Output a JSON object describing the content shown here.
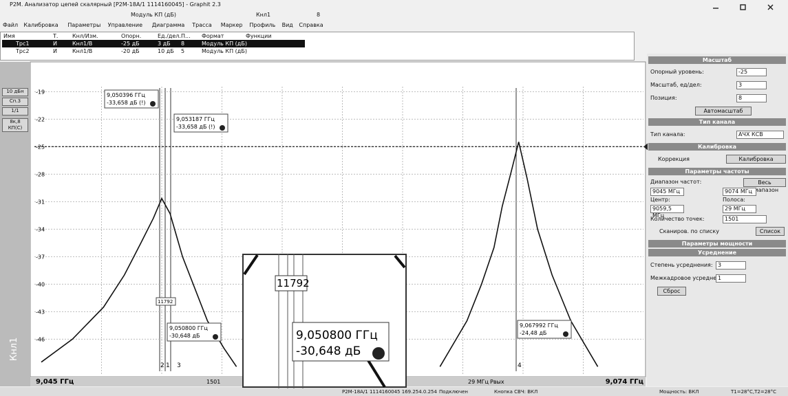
{
  "window": {
    "title": "P2M. Анализатор цепей скалярный [P2M-18A/1 1114160045] - Graphit 2.3"
  },
  "toolbar": {
    "format": "Модуль КП (дБ)",
    "channel": "Кнл1",
    "trace_count": 8
  },
  "menu": [
    "Файл",
    "Калибровка",
    "Параметры",
    "Управление",
    "Диаграмма",
    "Трасса",
    "Маркер",
    "Профиль",
    "Вид",
    "Справка"
  ],
  "trace_table": {
    "columns": [
      "Имя",
      "Т.",
      "Кнл/Изм.",
      "Опорн.",
      "Ед./дел.",
      "П...",
      "Формат",
      "Функции"
    ],
    "rows": [
      [
        "И",
        "Кнл1/В",
        "-25 дБ",
        "3 дБ",
        8,
        "Модуль КП (дБ)"
      ],
      [
        "И",
        "Кнл1/В",
        "-20 дБ",
        "10 дБ",
        5,
        "Модуль КП (дБ)"
      ]
    ]
  },
  "side_buttons": [
    "10 дБн",
    "Сп.3",
    "1/1",
    "8к,8 КП(С)"
  ],
  "channel_label": "Кнл1",
  "chart_data": {
    "type": "line",
    "xlim": [
      9.045,
      9.074
    ],
    "ylim": [
      -49.5,
      -18.6
    ],
    "yticks": [
      -19,
      -22,
      -25,
      -28,
      -31,
      -34,
      -37,
      -40,
      -43,
      -46
    ],
    "grid": true,
    "x_start_label": "9,045 ГГц",
    "x_end_label": "9,074 ГГц",
    "series": [
      {
        "name": "Трс1",
        "color": "#111111",
        "x": [
          9.045,
          9.0465,
          9.048,
          9.049,
          9.0498,
          9.0504,
          9.0508,
          9.0512,
          9.0518,
          9.053,
          9.0538,
          9.0544
        ],
        "values": [
          -48.5,
          -46,
          -42.5,
          -39,
          -35.5,
          -32.8,
          -30.648,
          -32.3,
          -37,
          -44,
          -47,
          -49
        ]
      },
      {
        "name": "Трс2",
        "color": "#111111",
        "x": [
          9.0642,
          9.0655,
          9.0662,
          9.0668,
          9.0672,
          9.0676,
          9.067992,
          9.0684,
          9.0689,
          9.0696,
          9.0705,
          9.0718
        ],
        "values": [
          -49,
          -44,
          -40,
          -36,
          -31.5,
          -28,
          -24.48,
          -28.5,
          -34,
          -39,
          -44,
          -49
        ]
      }
    ]
  },
  "markers": [
    {
      "number": 1,
      "freq": "9,050800 ГГц",
      "level": "-30,648 дБ"
    },
    {
      "number": 2,
      "freq": "9,050396 ГГц",
      "level": "-33,658 дБ (!)"
    },
    {
      "number": 3,
      "freq": "9,053187 ГГц",
      "level": "-33,658 дБ (!)"
    },
    {
      "number": 4,
      "freq": "9,067992 ГГц",
      "level": "-24,48 дБ"
    }
  ],
  "marker_count": 11792,
  "bottom_bar": {
    "power": "Рвых"
  },
  "panel": {
    "scale": {
      "title": "Масштаб",
      "ref_label": "Опорный уровень:",
      "ref": -25,
      "div_label": "Масштаб, ед/дел:",
      "div": 3,
      "pos_label": "Позиция:",
      "pos": 8,
      "auto": "Автомасштаб"
    },
    "channel_type": {
      "title": "Тип канала",
      "label": "Тип канала:",
      "value": "АЧХ КСВ"
    },
    "calibration": {
      "title": "Калибровка",
      "correction": "Коррекция",
      "button": "Калибровка"
    },
    "frequency": {
      "title": "Параметры частоты",
      "range_label": "Диапазон частот:",
      "full": "Весь диапазон",
      "start": "9045 МГц",
      "stop": "9074 МГц",
      "center_label": "Центр:",
      "span_label": "Полоса:",
      "center": "9059,5 МГц",
      "span": "29 МГц",
      "points_label": "Количество точек:",
      "points": 1501,
      "list_scan": "Сканиров. по списку",
      "list": "Список"
    },
    "power": {
      "title": "Параметры мощности"
    },
    "averaging": {
      "title": "Усреднение",
      "degree_label": "Степень усреднения:",
      "degree": 3,
      "frame_label": "Межкадровое усреднение:",
      "frame": 1,
      "reset": "Сброс"
    }
  },
  "status": [
    "P2M-18A/1 1114160045  169.254.0.254",
    "Подключен",
    "Кнопка СВЧ: ВКЛ",
    "Мощность: ВКЛ",
    "T1=28°C,T2=28°C"
  ]
}
